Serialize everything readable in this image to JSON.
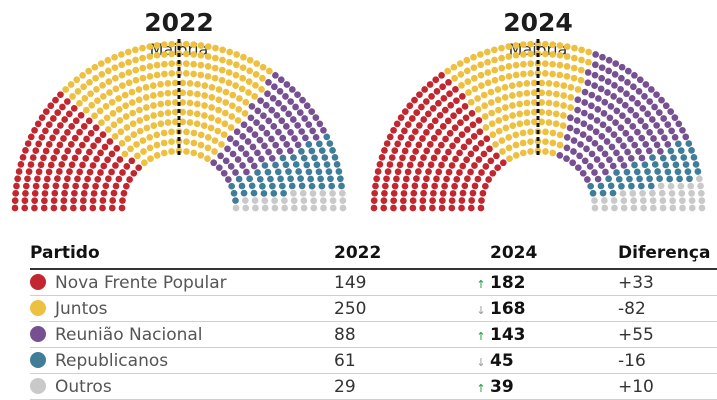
{
  "chart_data": {
    "type": "hemicycle",
    "majority_label": "Maioria",
    "charts": [
      {
        "year": "2022",
        "seats": [
          {
            "party": "Nova Frente Popular",
            "value": 149
          },
          {
            "party": "Juntos",
            "value": 250
          },
          {
            "party": "Reunião Nacional",
            "value": 88
          },
          {
            "party": "Republicanos",
            "value": 61
          },
          {
            "party": "Outros",
            "value": 29
          }
        ]
      },
      {
        "year": "2024",
        "seats": [
          {
            "party": "Nova Frente Popular",
            "value": 182
          },
          {
            "party": "Juntos",
            "value": 168
          },
          {
            "party": "Reunião Nacional",
            "value": 143
          },
          {
            "party": "Republicanos",
            "value": 45
          },
          {
            "party": "Outros",
            "value": 39
          }
        ]
      }
    ],
    "table": {
      "headers": [
        "Partido",
        "2022",
        "2024",
        "Diferença"
      ],
      "rows": [
        {
          "party": "Nova Frente Popular",
          "y2022": "149",
          "y2024": "182",
          "trend": "up",
          "diff": "+33",
          "color": "#c2262e"
        },
        {
          "party": "Juntos",
          "y2022": "250",
          "y2024": "168",
          "trend": "down",
          "diff": "-82",
          "color": "#edc040"
        },
        {
          "party": "Reunião Nacional",
          "y2022": "88",
          "y2024": "143",
          "trend": "up",
          "diff": "+55",
          "color": "#765090"
        },
        {
          "party": "Republicanos",
          "y2022": "61",
          "y2024": "45",
          "trend": "down",
          "diff": "-16",
          "color": "#3f7d98"
        },
        {
          "party": "Outros",
          "y2022": "29",
          "y2024": "39",
          "trend": "up",
          "diff": "+10",
          "color": "#c9c9c9"
        }
      ]
    },
    "colors": {
      "Nova Frente Popular": "#c2262e",
      "Juntos": "#edc040",
      "Reunião Nacional": "#765090",
      "Republicanos": "#3f7d98",
      "Outros": "#c9c9c9"
    },
    "arrow_icons": {
      "up": "↑",
      "down": "↓"
    }
  }
}
